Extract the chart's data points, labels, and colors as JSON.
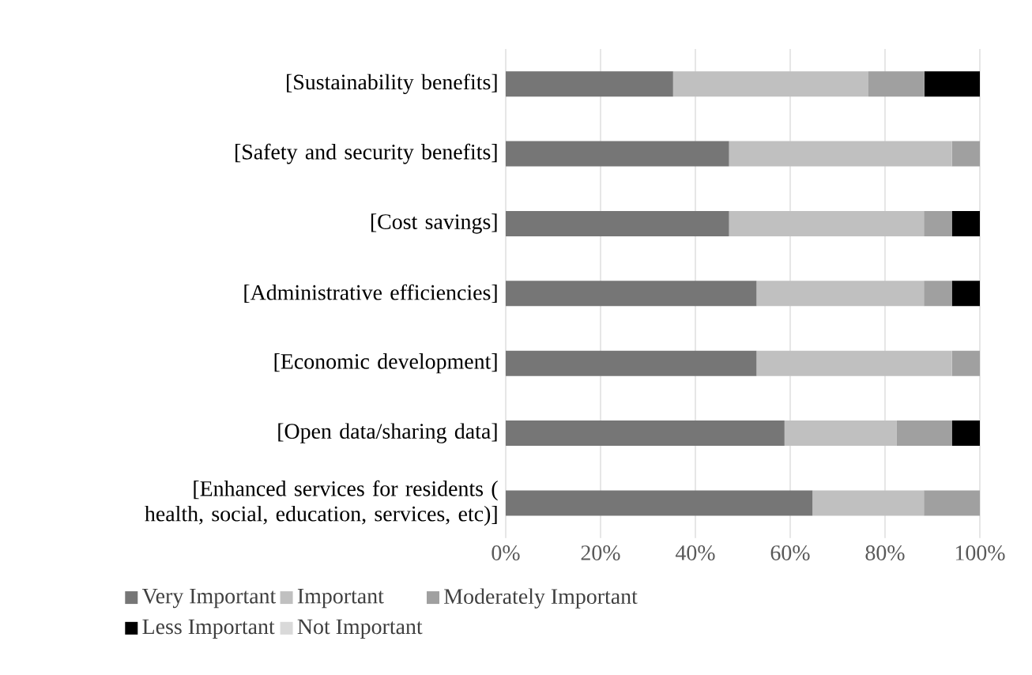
{
  "chart_data": {
    "type": "bar",
    "orientation": "horizontal",
    "stacked": true,
    "categories": [
      "[Sustainability benefits]",
      "[Safety and security benefits]",
      "[Cost savings]",
      "[Administrative efficiencies]",
      "[Economic development]",
      "[Open data/sharing data]",
      "[Enhanced services for residents ( health, social, education, services, etc)]"
    ],
    "series": [
      {
        "name": "Very Important",
        "color": "#767676",
        "values": [
          35.3,
          47.1,
          47.1,
          52.9,
          52.9,
          58.8,
          64.7
        ]
      },
      {
        "name": "Important",
        "color": "#c0c0c0",
        "values": [
          41.2,
          47.0,
          41.1,
          35.3,
          41.2,
          23.6,
          23.5
        ]
      },
      {
        "name": "Moderately Important",
        "color": "#a0a0a0",
        "values": [
          11.8,
          5.9,
          5.9,
          5.9,
          5.9,
          11.7,
          11.8
        ]
      },
      {
        "name": "Less Important",
        "color": "#000000",
        "values": [
          11.7,
          0,
          5.9,
          5.9,
          0,
          5.9,
          0
        ]
      },
      {
        "name": "Not Important",
        "color": "#d9d9d9",
        "values": [
          0,
          0,
          0,
          0,
          0,
          0,
          0
        ]
      }
    ],
    "xlim": [
      0,
      100
    ],
    "xticks": [
      {
        "value": 0,
        "label": "0%"
      },
      {
        "value": 20,
        "label": "20%"
      },
      {
        "value": 40,
        "label": "40%"
      },
      {
        "value": 60,
        "label": "60%"
      },
      {
        "value": 80,
        "label": "80%"
      },
      {
        "value": 100,
        "label": "100%"
      }
    ],
    "grid": "x",
    "legend": "bottom"
  }
}
